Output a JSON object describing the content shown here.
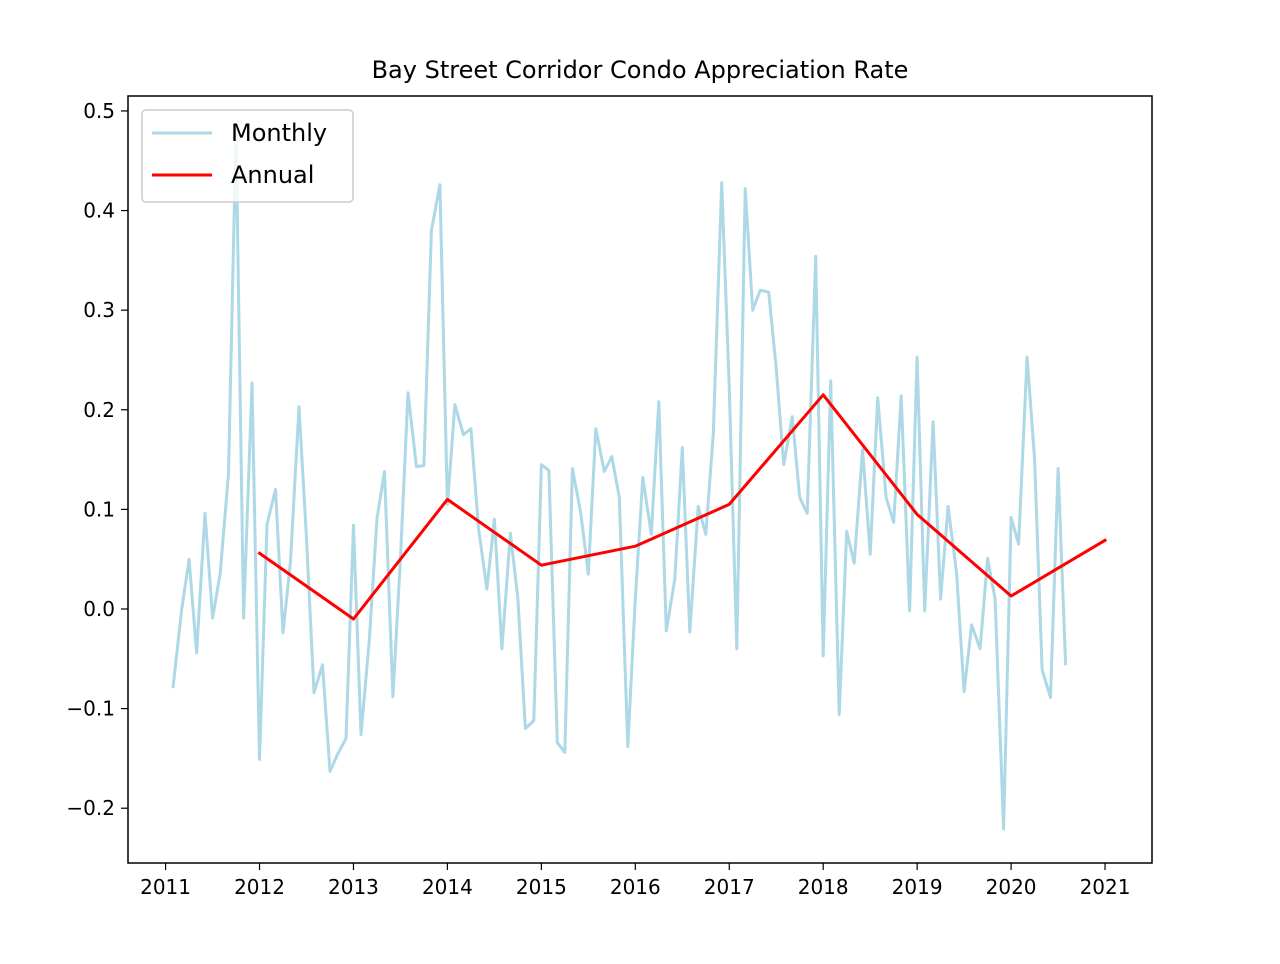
{
  "chart_data": {
    "type": "line",
    "title": "Bay Street Corridor Condo Appreciation Rate",
    "xlabel": "",
    "ylabel": "",
    "xlim": [
      2010.6,
      2021.5
    ],
    "ylim": [
      -0.255,
      0.515
    ],
    "x_ticks": [
      2011,
      2012,
      2013,
      2014,
      2015,
      2016,
      2017,
      2018,
      2019,
      2020,
      2021
    ],
    "x_tick_labels": [
      "2011",
      "2012",
      "2013",
      "2014",
      "2015",
      "2016",
      "2017",
      "2018",
      "2019",
      "2020",
      "2021"
    ],
    "y_ticks": [
      -0.2,
      -0.1,
      0.0,
      0.1,
      0.2,
      0.3,
      0.4,
      0.5
    ],
    "y_tick_labels": [
      "−0.2",
      "−0.1",
      "0.0",
      "0.1",
      "0.2",
      "0.3",
      "0.4",
      "0.5"
    ],
    "grid": false,
    "legend_position": "top-left",
    "series": [
      {
        "name": "Monthly",
        "color": "#add8e6",
        "x": [
          2011.08,
          2011.17,
          2011.25,
          2011.33,
          2011.42,
          2011.5,
          2011.58,
          2011.67,
          2011.75,
          2011.83,
          2011.92,
          2012.0,
          2012.08,
          2012.17,
          2012.25,
          2012.33,
          2012.42,
          2012.5,
          2012.58,
          2012.67,
          2012.75,
          2012.83,
          2012.92,
          2013.0,
          2013.08,
          2013.17,
          2013.25,
          2013.33,
          2013.42,
          2013.5,
          2013.58,
          2013.67,
          2013.75,
          2013.83,
          2013.92,
          2014.0,
          2014.08,
          2014.17,
          2014.25,
          2014.33,
          2014.42,
          2014.5,
          2014.58,
          2014.67,
          2014.75,
          2014.83,
          2014.92,
          2015.0,
          2015.08,
          2015.17,
          2015.25,
          2015.33,
          2015.42,
          2015.5,
          2015.58,
          2015.67,
          2015.75,
          2015.83,
          2015.92,
          2016.0,
          2016.08,
          2016.17,
          2016.25,
          2016.33,
          2016.42,
          2016.5,
          2016.58,
          2016.67,
          2016.75,
          2016.83,
          2016.92,
          2017.0,
          2017.08,
          2017.17,
          2017.25,
          2017.33,
          2017.42,
          2017.5,
          2017.58,
          2017.67,
          2017.75,
          2017.83,
          2017.92,
          2018.0,
          2018.08,
          2018.17,
          2018.25,
          2018.33,
          2018.42,
          2018.5,
          2018.58,
          2018.67,
          2018.75,
          2018.83,
          2018.92,
          2019.0,
          2019.08,
          2019.17,
          2019.25,
          2019.33,
          2019.42,
          2019.5,
          2019.58,
          2019.67,
          2019.75,
          2019.83,
          2019.92,
          2020.0,
          2020.08,
          2020.17,
          2020.25,
          2020.33,
          2020.42,
          2020.5,
          2020.58
        ],
        "values": [
          -0.078,
          -0.002,
          0.05,
          -0.044,
          0.096,
          -0.009,
          0.035,
          0.136,
          0.48,
          -0.009,
          0.227,
          -0.151,
          0.085,
          0.12,
          -0.024,
          0.048,
          0.203,
          0.071,
          -0.084,
          -0.056,
          -0.163,
          -0.146,
          -0.13,
          0.084,
          -0.126,
          -0.03,
          0.091,
          0.138,
          -0.088,
          0.05,
          0.217,
          0.143,
          0.144,
          0.38,
          0.426,
          0.105,
          0.205,
          0.175,
          0.181,
          0.082,
          0.02,
          0.09,
          -0.04,
          0.076,
          0.01,
          -0.12,
          -0.112,
          0.145,
          0.139,
          -0.134,
          -0.144,
          0.141,
          0.096,
          0.035,
          0.181,
          0.138,
          0.153,
          0.112,
          -0.138,
          0.01,
          0.132,
          0.075,
          0.208,
          -0.022,
          0.03,
          0.162,
          -0.023,
          0.103,
          0.075,
          0.176,
          0.428,
          0.224,
          -0.04,
          0.422,
          0.3,
          0.32,
          0.318,
          0.242,
          0.145,
          0.193,
          0.112,
          0.096,
          0.354,
          -0.047,
          0.229,
          -0.106,
          0.078,
          0.046,
          0.16,
          0.055,
          0.212,
          0.112,
          0.087,
          0.214,
          -0.002,
          0.253,
          -0.002,
          0.188,
          0.01,
          0.103,
          0.036,
          -0.083,
          -0.016,
          -0.04,
          0.051,
          0.01,
          -0.221,
          0.092,
          0.065,
          0.253,
          0.15,
          -0.061,
          -0.089,
          0.141,
          -0.055
        ]
      },
      {
        "name": "Annual",
        "color": "#ff0000",
        "x": [
          2012,
          2013,
          2014,
          2015,
          2016,
          2017,
          2018,
          2019,
          2020,
          2021
        ],
        "values": [
          0.056,
          -0.01,
          0.11,
          0.044,
          0.063,
          0.105,
          0.215,
          0.095,
          0.013,
          0.069
        ]
      }
    ]
  }
}
